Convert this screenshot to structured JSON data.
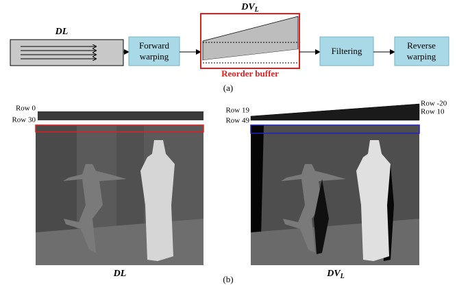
{
  "part_a": {
    "input_label": "DL",
    "forward_warping": [
      "Forward",
      "warping"
    ],
    "buffer_label": {
      "main": "DV",
      "sub": "L"
    },
    "reorder_buffer": "Reorder buffer",
    "filtering": "Filtering",
    "reverse_warping": [
      "Reverse",
      "warping"
    ],
    "caption": "(a)"
  },
  "part_b": {
    "left": {
      "row_labels": [
        "Row 0",
        "Row 30"
      ],
      "caption": "DL"
    },
    "right": {
      "row_labels_left": [
        "Row 19",
        "Row 49"
      ],
      "row_labels_right": [
        "Row -20",
        "Row 10"
      ],
      "caption": {
        "main": "DV",
        "sub": "L"
      }
    },
    "caption": "(b)"
  }
}
